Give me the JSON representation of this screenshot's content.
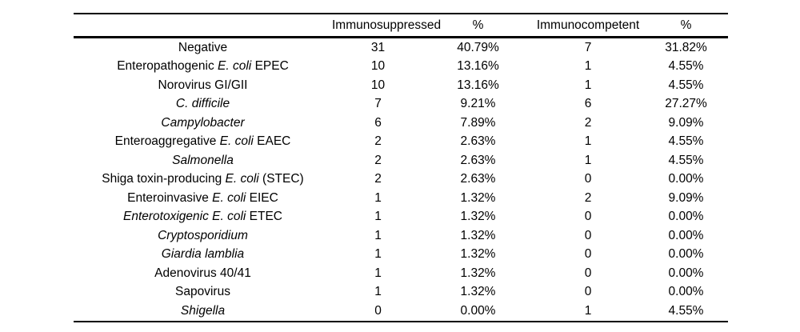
{
  "page": {
    "background_color": "#ffffff",
    "text_color": "#000000"
  },
  "table": {
    "columns": [
      {
        "label": ""
      },
      {
        "label": "Immunosuppressed"
      },
      {
        "label": "%"
      },
      {
        "label": "Immunocompetent"
      },
      {
        "label": "%"
      }
    ],
    "rows": [
      {
        "label_segments": [
          {
            "text": "Negative",
            "italic": false
          }
        ],
        "immunosuppressed": "31",
        "immunosuppressed_pct": "40.79%",
        "immunocompetent": "7",
        "immunocompetent_pct": "31.82%"
      },
      {
        "label_segments": [
          {
            "text": "Enteropathogenic ",
            "italic": false
          },
          {
            "text": "E. coli",
            "italic": true
          },
          {
            "text": " EPEC",
            "italic": false
          }
        ],
        "immunosuppressed": "10",
        "immunosuppressed_pct": "13.16%",
        "immunocompetent": "1",
        "immunocompetent_pct": "4.55%"
      },
      {
        "label_segments": [
          {
            "text": "Norovirus GI/GII",
            "italic": false
          }
        ],
        "immunosuppressed": "10",
        "immunosuppressed_pct": "13.16%",
        "immunocompetent": "1",
        "immunocompetent_pct": "4.55%"
      },
      {
        "label_segments": [
          {
            "text": "C. difficile",
            "italic": true
          }
        ],
        "immunosuppressed": "7",
        "immunosuppressed_pct": "9.21%",
        "immunocompetent": "6",
        "immunocompetent_pct": "27.27%"
      },
      {
        "label_segments": [
          {
            "text": "Campylobacter",
            "italic": true
          }
        ],
        "immunosuppressed": "6",
        "immunosuppressed_pct": "7.89%",
        "immunocompetent": "2",
        "immunocompetent_pct": "9.09%"
      },
      {
        "label_segments": [
          {
            "text": "Enteroaggregative ",
            "italic": false
          },
          {
            "text": "E. coli",
            "italic": true
          },
          {
            "text": " EAEC",
            "italic": false
          }
        ],
        "immunosuppressed": "2",
        "immunosuppressed_pct": "2.63%",
        "immunocompetent": "1",
        "immunocompetent_pct": "4.55%"
      },
      {
        "label_segments": [
          {
            "text": "Salmonella",
            "italic": true
          }
        ],
        "immunosuppressed": "2",
        "immunosuppressed_pct": "2.63%",
        "immunocompetent": "1",
        "immunocompetent_pct": "4.55%"
      },
      {
        "label_segments": [
          {
            "text": "Shiga toxin-producing ",
            "italic": false
          },
          {
            "text": "E. coli",
            "italic": true
          },
          {
            "text": " (STEC)",
            "italic": false
          }
        ],
        "immunosuppressed": "2",
        "immunosuppressed_pct": "2.63%",
        "immunocompetent": "0",
        "immunocompetent_pct": "0.00%"
      },
      {
        "label_segments": [
          {
            "text": "Enteroinvasive ",
            "italic": false
          },
          {
            "text": "E. coli",
            "italic": true
          },
          {
            "text": " EIEC",
            "italic": false
          }
        ],
        "immunosuppressed": "1",
        "immunosuppressed_pct": "1.32%",
        "immunocompetent": "2",
        "immunocompetent_pct": "9.09%"
      },
      {
        "label_segments": [
          {
            "text": "Enterotoxigenic E. coli",
            "italic": true
          },
          {
            "text": " ETEC",
            "italic": false
          }
        ],
        "immunosuppressed": "1",
        "immunosuppressed_pct": "1.32%",
        "immunocompetent": "0",
        "immunocompetent_pct": "0.00%"
      },
      {
        "label_segments": [
          {
            "text": "Cryptosporidium",
            "italic": true
          }
        ],
        "immunosuppressed": "1",
        "immunosuppressed_pct": "1.32%",
        "immunocompetent": "0",
        "immunocompetent_pct": "0.00%"
      },
      {
        "label_segments": [
          {
            "text": "Giardia lamblia",
            "italic": true
          }
        ],
        "immunosuppressed": "1",
        "immunosuppressed_pct": "1.32%",
        "immunocompetent": "0",
        "immunocompetent_pct": "0.00%"
      },
      {
        "label_segments": [
          {
            "text": "Adenovirus 40/41",
            "italic": false
          }
        ],
        "immunosuppressed": "1",
        "immunosuppressed_pct": "1.32%",
        "immunocompetent": "0",
        "immunocompetent_pct": "0.00%"
      },
      {
        "label_segments": [
          {
            "text": "Sapovirus",
            "italic": false
          }
        ],
        "immunosuppressed": "1",
        "immunosuppressed_pct": "1.32%",
        "immunocompetent": "0",
        "immunocompetent_pct": "0.00%"
      },
      {
        "label_segments": [
          {
            "text": "Shigella",
            "italic": true
          }
        ],
        "immunosuppressed": "0",
        "immunosuppressed_pct": "0.00%",
        "immunocompetent": "1",
        "immunocompetent_pct": "4.55%"
      }
    ]
  },
  "chart_data": {
    "type": "table",
    "categories": [
      "Negative",
      "Enteropathogenic E. coli EPEC",
      "Norovirus GI/GII",
      "C. difficile",
      "Campylobacter",
      "Enteroaggregative E. coli EAEC",
      "Salmonella",
      "Shiga toxin-producing E. coli (STEC)",
      "Enteroinvasive E. coli EIEC",
      "Enterotoxigenic E. coli ETEC",
      "Cryptosporidium",
      "Giardia lamblia",
      "Adenovirus 40/41",
      "Sapovirus",
      "Shigella"
    ],
    "series": [
      {
        "name": "Immunosuppressed",
        "values": [
          31,
          10,
          10,
          7,
          6,
          2,
          2,
          2,
          1,
          1,
          1,
          1,
          1,
          1,
          0
        ]
      },
      {
        "name": "Immunosuppressed %",
        "values": [
          "40.79%",
          "13.16%",
          "13.16%",
          "9.21%",
          "7.89%",
          "2.63%",
          "2.63%",
          "2.63%",
          "1.32%",
          "1.32%",
          "1.32%",
          "1.32%",
          "1.32%",
          "1.32%",
          "0.00%"
        ]
      },
      {
        "name": "Immunocompetent",
        "values": [
          7,
          1,
          1,
          6,
          2,
          1,
          1,
          0,
          2,
          0,
          0,
          0,
          0,
          0,
          1
        ]
      },
      {
        "name": "Immunocompetent %",
        "values": [
          "31.82%",
          "4.55%",
          "4.55%",
          "27.27%",
          "9.09%",
          "4.55%",
          "4.55%",
          "0.00%",
          "9.09%",
          "0.00%",
          "0.00%",
          "0.00%",
          "0.00%",
          "0.00%",
          "4.55%"
        ]
      }
    ]
  }
}
